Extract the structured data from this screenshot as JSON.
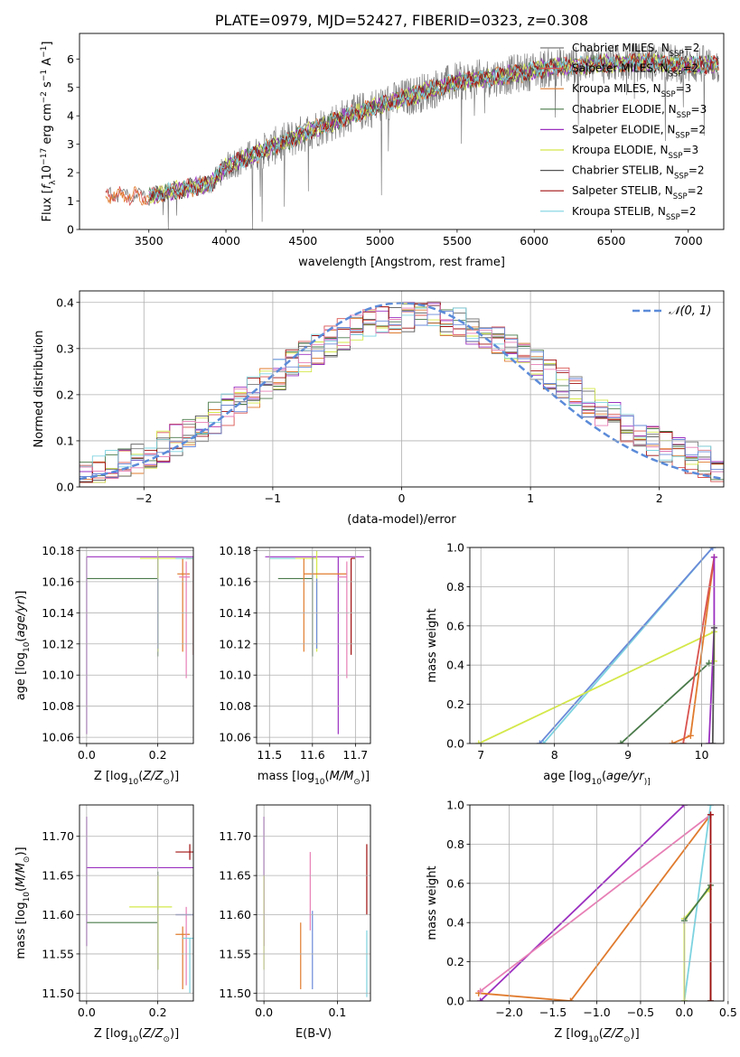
{
  "figure": {
    "title": "PLATE=0979, MJD=52427, FIBERID=0323, z=0.308"
  },
  "colors": {
    "chabrier_miles": "#7a7a7a",
    "salpeter_miles": "#d9534f",
    "kroupa_miles": "#e07b2e",
    "chabrier_elodie": "#4a7a4a",
    "salpeter_elodie": "#9b30c0",
    "kroupa_elodie": "#d4e84a",
    "chabrier_stelib": "#555555",
    "salpeter_stelib": "#a01010",
    "kroupa_stelib": "#7dd3e0",
    "pink": "#e77fb5",
    "blue": "#6a8ad8",
    "normal": "#5b8bd9",
    "grid": "#b0b0b0",
    "spectrum": "#808080"
  },
  "chart_data": [
    {
      "id": "spectrum",
      "type": "line",
      "xlabel": "wavelength [Angstrom, rest frame]",
      "ylabel_parts": [
        "Flux [",
        "f",
        "λ",
        "10",
        "−17",
        " erg cm",
        "−2",
        " s",
        "−1",
        " A",
        "−1",
        "]"
      ],
      "xlim": [
        3050,
        7230
      ],
      "ylim": [
        0,
        6.9
      ],
      "xticks": [
        3500,
        4000,
        4500,
        5000,
        5500,
        6000,
        6500,
        7000
      ],
      "yticks": [
        0,
        1,
        2,
        3,
        4,
        5,
        6
      ],
      "grid": false,
      "legend_position": "right",
      "legend": [
        {
          "name": "Chabrier MILES",
          "nssp": "2",
          "color_key": "chabrier_miles"
        },
        {
          "name": "Salpeter MILES",
          "nssp": "2",
          "color_key": "salpeter_miles"
        },
        {
          "name": "Kroupa MILES",
          "nssp": "3",
          "color_key": "kroupa_miles"
        },
        {
          "name": "Chabrier ELODIE",
          "nssp": "3",
          "color_key": "chabrier_elodie"
        },
        {
          "name": "Salpeter ELODIE",
          "nssp": "2",
          "color_key": "salpeter_elodie"
        },
        {
          "name": "Kroupa ELODIE",
          "nssp": "3",
          "color_key": "kroupa_elodie"
        },
        {
          "name": "Chabrier STELIB",
          "nssp": "2",
          "color_key": "chabrier_stelib"
        },
        {
          "name": "Salpeter STELIB",
          "nssp": "2",
          "color_key": "salpeter_stelib"
        },
        {
          "name": "Kroupa STELIB",
          "nssp": "2",
          "color_key": "kroupa_stelib"
        }
      ],
      "nssp_prefix": "N",
      "nssp_sub": "SSP",
      "continuum": [
        [
          3220,
          1.25
        ],
        [
          3500,
          1.15
        ],
        [
          3700,
          1.4
        ],
        [
          3900,
          1.6
        ],
        [
          4000,
          2.2
        ],
        [
          4300,
          2.9
        ],
        [
          4600,
          3.6
        ],
        [
          4900,
          4.2
        ],
        [
          5200,
          4.7
        ],
        [
          5500,
          5.2
        ],
        [
          5800,
          5.4
        ],
        [
          6100,
          5.7
        ],
        [
          6400,
          5.8
        ],
        [
          6700,
          5.9
        ],
        [
          7000,
          5.8
        ],
        [
          7200,
          5.8
        ]
      ],
      "data_range": [
        3500,
        7200
      ],
      "model_range": [
        3220,
        7200
      ]
    },
    {
      "id": "residuals",
      "type": "line",
      "xlabel": "(data-model)/error",
      "ylabel": "Normed distribution",
      "xlim": [
        -2.5,
        2.5
      ],
      "ylim": [
        0,
        0.425
      ],
      "xticks": [
        -2,
        -1,
        0,
        1,
        2
      ],
      "xtick_labels": [
        "−2",
        "−1",
        "0",
        "1",
        "2"
      ],
      "yticks": [
        0,
        0.1,
        0.2,
        0.3,
        0.4
      ],
      "ytick_labels": [
        "0.0",
        "0.1",
        "0.2",
        "0.3",
        "0.4"
      ],
      "grid": true,
      "legend_position": "top-right",
      "legend_label": "𝒩(0, 1)",
      "bin_width": 0.1,
      "hist_color_keys": [
        "chabrier_miles",
        "salpeter_miles",
        "kroupa_miles",
        "chabrier_elodie",
        "salpeter_elodie",
        "kroupa_elodie",
        "chabrier_stelib",
        "salpeter_stelib",
        "kroupa_stelib",
        "pink",
        "blue"
      ]
    },
    {
      "id": "age_vs_z",
      "type": "scatter",
      "xlabel_parts": [
        "Z [log",
        "10",
        "(",
        "Z/Z",
        "⊙",
        ")]"
      ],
      "ylabel_parts": [
        "age  [log",
        "10",
        "(",
        "age/yr",
        ")]"
      ],
      "xlim": [
        -0.02,
        0.3
      ],
      "ylim": [
        10.056,
        10.182
      ],
      "xticks": [
        0,
        0.2
      ],
      "xtick_labels": [
        "0.0",
        "0.2"
      ],
      "yticks": [
        10.06,
        10.08,
        10.1,
        10.12,
        10.14,
        10.16,
        10.18
      ],
      "ytick_labels": [
        "10.06",
        "10.08",
        "10.10",
        "10.12",
        "10.14",
        "10.16",
        "10.18"
      ],
      "grid": true,
      "points": [
        {
          "x": 0.0,
          "y": 10.176,
          "xerr": [
            0.0,
            0.3
          ],
          "yerr": [
            0.114,
            0.0
          ],
          "color_key": "salpeter_elodie"
        },
        {
          "x": 0.2,
          "y": 10.162,
          "xerr": [
            0.2,
            0.0
          ],
          "yerr": [
            0.05,
            0.014
          ],
          "color_key": "chabrier_elodie"
        },
        {
          "x": 0.2,
          "y": 10.175,
          "xerr": [
            0.05,
            0.1
          ],
          "yerr": [
            0.06,
            0.005
          ],
          "color_key": "kroupa_elodie"
        },
        {
          "x": 0.27,
          "y": 10.165,
          "xerr": [
            0.015,
            0.02
          ],
          "yerr": [
            0.05,
            0.01
          ],
          "color_key": "kroupa_miles"
        },
        {
          "x": 0.28,
          "y": 10.163,
          "xerr": [
            0.02,
            0.01
          ],
          "yerr": [
            0.065,
            0.01
          ],
          "color_key": "pink"
        },
        {
          "x": 0.3,
          "y": 10.175,
          "xerr": [
            0.02,
            0.0
          ],
          "yerr": [
            0.062,
            0.0
          ],
          "color_key": "salpeter_stelib"
        },
        {
          "x": 0.3,
          "y": 10.175,
          "xerr": [
            0.05,
            0.0
          ],
          "yerr": [
            0.0,
            0.0
          ],
          "color_key": "kroupa_stelib"
        },
        {
          "x": 0.2,
          "y": 10.162,
          "xerr": [
            0.0,
            0.0
          ],
          "yerr": [
            0.045,
            0.0
          ],
          "color_key": "blue"
        }
      ]
    },
    {
      "id": "age_vs_mass",
      "type": "scatter",
      "xlabel_parts": [
        "mass [log",
        "10",
        "(",
        "M/M",
        "⊙",
        ")]"
      ],
      "xlim": [
        11.47,
        11.735
      ],
      "ylim": [
        10.056,
        10.182
      ],
      "xticks": [
        11.5,
        11.6,
        11.7
      ],
      "xtick_labels": [
        "11.5",
        "11.6",
        "11.7"
      ],
      "yticks": [
        10.06,
        10.08,
        10.1,
        10.12,
        10.14,
        10.16,
        10.18
      ],
      "ytick_labels": [
        "10.06",
        "10.08",
        "10.10",
        "10.12",
        "10.14",
        "10.16",
        "10.18"
      ],
      "grid": true,
      "points": [
        {
          "x": 11.66,
          "y": 10.176,
          "xerr": [
            0.17,
            0.06
          ],
          "yerr": [
            0.114,
            0.0
          ],
          "color_key": "salpeter_elodie"
        },
        {
          "x": 11.61,
          "y": 10.175,
          "xerr": [
            0.11,
            0.0
          ],
          "yerr": [
            0.06,
            0.005
          ],
          "color_key": "kroupa_elodie"
        },
        {
          "x": 11.6,
          "y": 10.162,
          "xerr": [
            0.08,
            0.0
          ],
          "yerr": [
            0.05,
            0.014
          ],
          "color_key": "chabrier_elodie"
        },
        {
          "x": 11.58,
          "y": 10.165,
          "xerr": [
            0.0,
            0.1
          ],
          "yerr": [
            0.05,
            0.01
          ],
          "color_key": "kroupa_miles"
        },
        {
          "x": 11.68,
          "y": 10.163,
          "xerr": [
            0.02,
            0.0
          ],
          "yerr": [
            0.065,
            0.01
          ],
          "color_key": "pink"
        },
        {
          "x": 11.69,
          "y": 10.175,
          "xerr": [
            0.0,
            0.01
          ],
          "yerr": [
            0.062,
            0.0
          ],
          "color_key": "salpeter_stelib"
        },
        {
          "x": 11.5,
          "y": 10.175,
          "xerr": [
            0.0,
            0.06
          ],
          "yerr": [
            0.0,
            0.0
          ],
          "color_key": "kroupa_stelib"
        },
        {
          "x": 11.61,
          "y": 10.162,
          "xerr": [
            0.0,
            0.0
          ],
          "yerr": [
            0.045,
            0.0
          ],
          "color_key": "blue"
        }
      ]
    },
    {
      "id": "massweight_vs_age",
      "type": "line",
      "xlabel_parts": [
        "age  [log",
        "10",
        "(",
        "age/yr",
        ")]"
      ],
      "ylabel": "mass weight",
      "xlim": [
        6.85,
        10.3
      ],
      "ylim": [
        0,
        1
      ],
      "xticks": [
        7,
        8,
        9,
        10
      ],
      "xtick_labels": [
        "7",
        "8",
        "9",
        "10"
      ],
      "yticks": [
        0,
        0.2,
        0.4,
        0.6,
        0.8,
        1.0
      ],
      "ytick_labels": [
        "0.0",
        "0.2",
        "0.4",
        "0.6",
        "0.8",
        "1.0"
      ],
      "grid": true,
      "series": [
        {
          "color_key": "kroupa_stelib",
          "x": [
            7.85,
            10.15
          ],
          "y": [
            0.0,
            1.0
          ]
        },
        {
          "color_key": "blue",
          "x": [
            7.8,
            10.15
          ],
          "y": [
            0.0,
            1.0
          ]
        },
        {
          "color_key": "kroupa_elodie",
          "x": [
            6.97,
            10.17,
            10.17
          ],
          "y": [
            0.0,
            0.57,
            0.42
          ]
        },
        {
          "color_key": "chabrier_elodie",
          "x": [
            8.9,
            10.1
          ],
          "y": [
            0.0,
            0.41
          ]
        },
        {
          "color_key": "kroupa_miles",
          "x": [
            9.6,
            9.85,
            10.17
          ],
          "y": [
            0.0,
            0.04,
            0.95
          ]
        },
        {
          "color_key": "salpeter_miles",
          "x": [
            9.75,
            10.17
          ],
          "y": [
            0.0,
            0.95
          ]
        },
        {
          "color_key": "salpeter_elodie",
          "x": [
            10.1,
            10.17,
            10.17
          ],
          "y": [
            0.0,
            0.59,
            0.95
          ]
        },
        {
          "color_key": "chabrier_stelib",
          "x": [
            10.15,
            10.17
          ],
          "y": [
            0.0,
            0.59
          ]
        }
      ]
    },
    {
      "id": "mass_vs_z",
      "type": "scatter",
      "xlabel_parts": [
        "Z [log",
        "10",
        "(",
        "Z/Z",
        "⊙",
        ")]"
      ],
      "ylabel_parts": [
        "mass [log",
        "10",
        "(",
        "M/M",
        "⊙",
        ")]"
      ],
      "xlim": [
        -0.02,
        0.3
      ],
      "ylim": [
        11.49,
        11.74
      ],
      "xticks": [
        0,
        0.2
      ],
      "xtick_labels": [
        "0.0",
        "0.2"
      ],
      "yticks": [
        11.5,
        11.55,
        11.6,
        11.65,
        11.7
      ],
      "ytick_labels": [
        "11.50",
        "11.55",
        "11.60",
        "11.65",
        "11.70"
      ],
      "grid": true,
      "points": [
        {
          "x": 0.0,
          "y": 11.66,
          "xerr": [
            0.0,
            0.3
          ],
          "yerr": [
            0.1,
            0.065
          ],
          "color_key": "salpeter_elodie"
        },
        {
          "x": 0.2,
          "y": 11.59,
          "xerr": [
            0.2,
            0.0
          ],
          "yerr": [
            0.06,
            0.065
          ],
          "color_key": "chabrier_elodie"
        },
        {
          "x": 0.2,
          "y": 11.61,
          "xerr": [
            0.08,
            0.04
          ],
          "yerr": [
            0.08,
            0.04
          ],
          "color_key": "kroupa_elodie"
        },
        {
          "x": 0.27,
          "y": 11.575,
          "xerr": [
            0.02,
            0.02
          ],
          "yerr": [
            0.07,
            0.01
          ],
          "color_key": "kroupa_miles"
        },
        {
          "x": 0.29,
          "y": 11.68,
          "xerr": [
            0.04,
            0.01
          ],
          "yerr": [
            0.01,
            0.01
          ],
          "color_key": "salpeter_stelib"
        },
        {
          "x": 0.28,
          "y": 11.6,
          "xerr": [
            0.03,
            0.02
          ],
          "yerr": [
            0.09,
            0.01
          ],
          "color_key": "pink"
        },
        {
          "x": 0.29,
          "y": 11.57,
          "xerr": [
            0.02,
            0.01
          ],
          "yerr": [
            0.07,
            0.0
          ],
          "color_key": "kroupa_stelib"
        },
        {
          "x": 0.29,
          "y": 11.6,
          "xerr": [
            0.04,
            0.01
          ],
          "yerr": [
            0.0,
            0.0
          ],
          "color_key": "blue"
        }
      ]
    },
    {
      "id": "mass_vs_ebv",
      "type": "scatter",
      "xlabel": "E(B-V)",
      "xlim": [
        -0.01,
        0.145
      ],
      "ylim": [
        11.49,
        11.74
      ],
      "xticks": [
        0,
        0.1
      ],
      "xtick_labels": [
        "0.0",
        "0.1"
      ],
      "yticks": [
        11.5,
        11.55,
        11.6,
        11.65,
        11.7
      ],
      "ytick_labels": [
        "11.50",
        "11.55",
        "11.60",
        "11.65",
        "11.70"
      ],
      "grid": true,
      "points": [
        {
          "x": 0.0,
          "y": 11.66,
          "xerr": [
            0,
            0
          ],
          "yerr": [
            0.1,
            0.065
          ],
          "color_key": "salpeter_elodie"
        },
        {
          "x": 0.0,
          "y": 11.6,
          "xerr": [
            0,
            0
          ],
          "yerr": [
            0.07,
            0.05
          ],
          "color_key": "kroupa_elodie"
        },
        {
          "x": 0.05,
          "y": 11.555,
          "xerr": [
            0,
            0
          ],
          "yerr": [
            0.05,
            0.035
          ],
          "color_key": "kroupa_miles"
        },
        {
          "x": 0.063,
          "y": 11.63,
          "xerr": [
            0,
            0
          ],
          "yerr": [
            0.05,
            0.05
          ],
          "color_key": "pink"
        },
        {
          "x": 0.066,
          "y": 11.555,
          "xerr": [
            0,
            0
          ],
          "yerr": [
            0.05,
            0.05
          ],
          "color_key": "blue"
        },
        {
          "x": 0.14,
          "y": 11.65,
          "xerr": [
            0,
            0
          ],
          "yerr": [
            0.05,
            0.04
          ],
          "color_key": "salpeter_stelib"
        },
        {
          "x": 0.14,
          "y": 11.55,
          "xerr": [
            0,
            0
          ],
          "yerr": [
            0.055,
            0.03
          ],
          "color_key": "kroupa_stelib"
        }
      ]
    },
    {
      "id": "massweight_vs_z",
      "type": "line",
      "xlabel_parts": [
        "Z [log",
        "10",
        "(",
        "Z/Z",
        "⊙",
        ")]"
      ],
      "ylabel": "mass weight",
      "xlim": [
        -2.45,
        0.45
      ],
      "ylim": [
        0,
        1
      ],
      "xticks": [
        -2,
        -1.5,
        -1,
        -0.5,
        0,
        0.5
      ],
      "xtick_labels": [
        "−2.0",
        "−1.5",
        "−1.0",
        "−0.5",
        "0.0",
        "0.5"
      ],
      "yticks": [
        0,
        0.2,
        0.4,
        0.6,
        0.8,
        1.0
      ],
      "ytick_labels": [
        "0.0",
        "0.2",
        "0.4",
        "0.6",
        "0.8",
        "1.0"
      ],
      "grid": true,
      "series": [
        {
          "color_key": "salpeter_elodie",
          "x": [
            -2.33,
            0.0
          ],
          "y": [
            0.0,
            1.0
          ]
        },
        {
          "color_key": "kroupa_miles",
          "x": [
            -2.35,
            -1.3,
            0.3
          ],
          "y": [
            0.04,
            0.0,
            0.95
          ]
        },
        {
          "color_key": "pink",
          "x": [
            -2.33,
            0.3
          ],
          "y": [
            0.05,
            0.95
          ]
        },
        {
          "color_key": "kroupa_stelib",
          "x": [
            0.0,
            0.3
          ],
          "y": [
            0.0,
            1.0
          ]
        },
        {
          "color_key": "kroupa_elodie",
          "x": [
            0.0,
            0.0,
            0.28
          ],
          "y": [
            0.0,
            0.42,
            0.57
          ]
        },
        {
          "color_key": "chabrier_elodie",
          "x": [
            0.0,
            0.3,
            0.3
          ],
          "y": [
            0.41,
            0.59,
            0.0
          ]
        },
        {
          "color_key": "salpeter_stelib",
          "x": [
            0.3,
            0.3
          ],
          "y": [
            0.0,
            0.95
          ]
        }
      ]
    }
  ]
}
